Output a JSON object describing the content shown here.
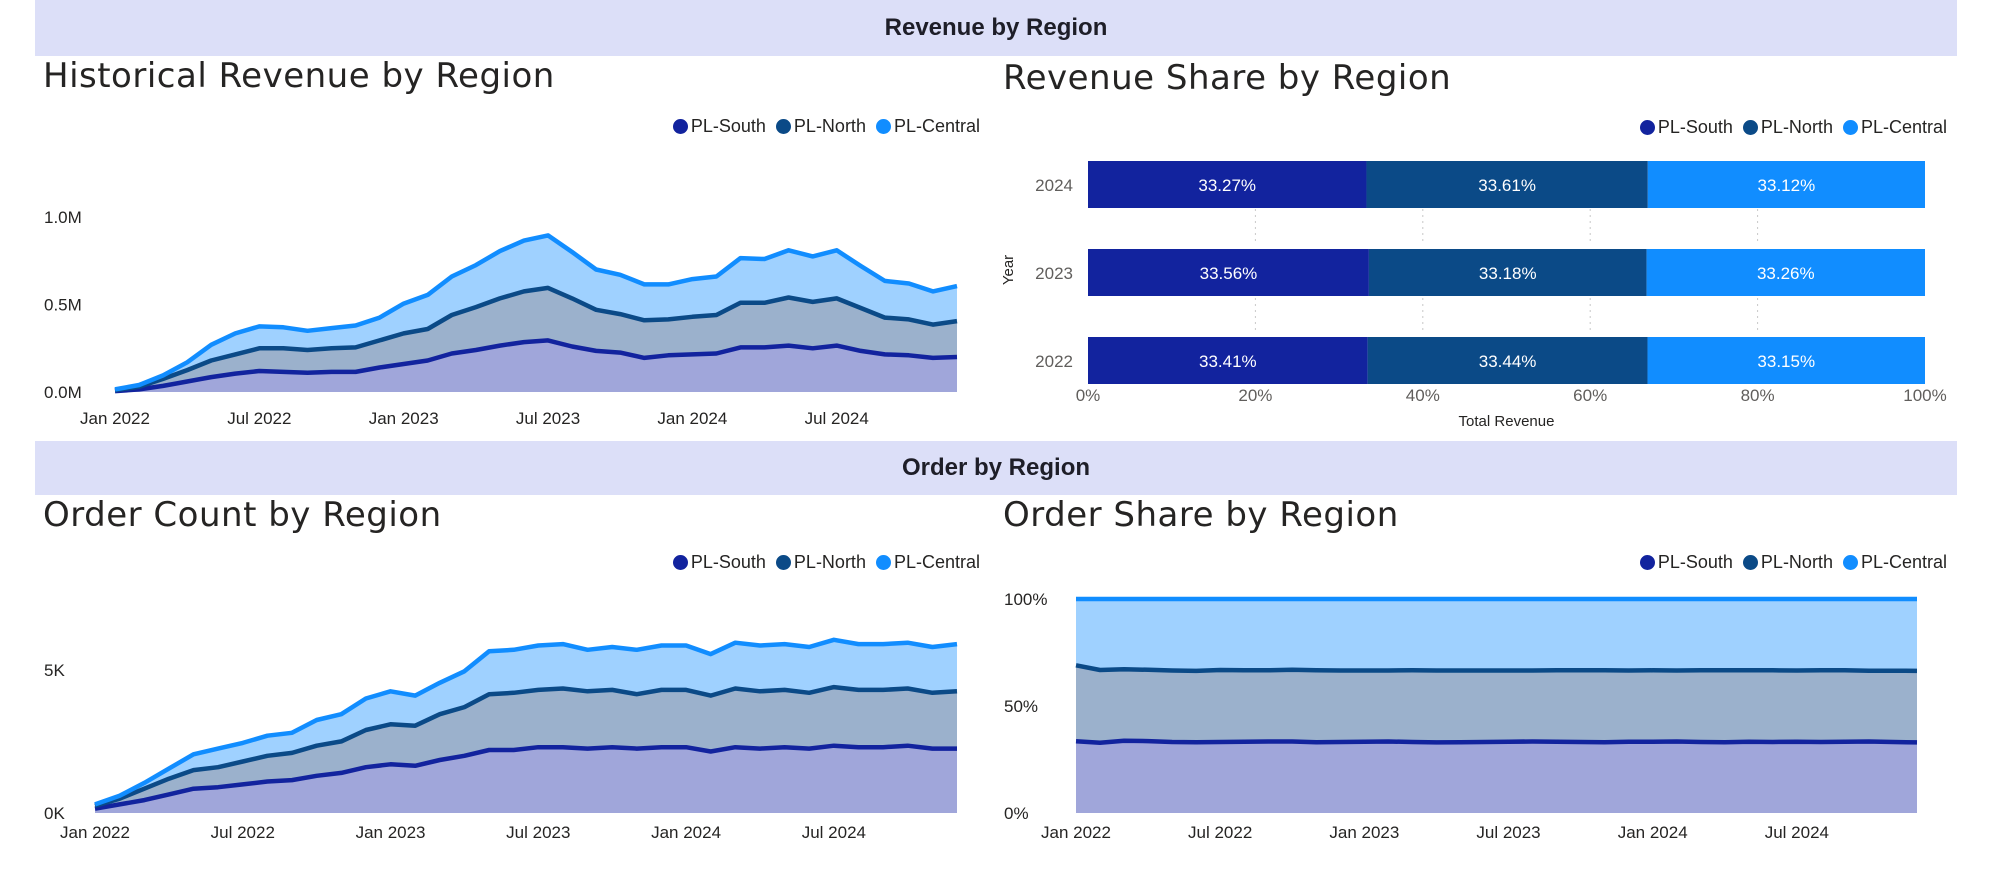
{
  "sections": {
    "revenue_title": "Revenue by Region",
    "order_title": "Order by Region"
  },
  "colors": {
    "south": "#12239e",
    "north": "#0b4a87",
    "central": "#118dff",
    "south_fill": "#a0a6da",
    "north_fill": "#9bb1cc",
    "central_fill": "#9fd1ff"
  },
  "legend": [
    "PL-South",
    "PL-North",
    "PL-Central"
  ],
  "chart_data": [
    {
      "type": "area",
      "stacked": true,
      "title": "Historical Revenue by Region",
      "x_ticks": [
        "Jan 2022",
        "Jul 2022",
        "Jan 2023",
        "Jul 2023",
        "Jan 2024",
        "Jul 2024"
      ],
      "y_ticks": [
        "0.0M",
        "0.5M",
        "1.0M"
      ],
      "ylim": [
        0,
        1000000
      ],
      "x": [
        "2022-01",
        "2022-02",
        "2022-03",
        "2022-04",
        "2022-05",
        "2022-06",
        "2022-07",
        "2022-08",
        "2022-09",
        "2022-10",
        "2022-11",
        "2022-12",
        "2023-01",
        "2023-02",
        "2023-03",
        "2023-04",
        "2023-05",
        "2023-06",
        "2023-07",
        "2023-08",
        "2023-09",
        "2023-10",
        "2023-11",
        "2023-12",
        "2024-01",
        "2024-02",
        "2024-03",
        "2024-04",
        "2024-05",
        "2024-06",
        "2024-07",
        "2024-08",
        "2024-09",
        "2024-10",
        "2024-11",
        "2024-12"
      ],
      "series": [
        {
          "name": "PL-South",
          "values": [
            5000,
            15000,
            35000,
            60000,
            85000,
            105000,
            120000,
            115000,
            110000,
            115000,
            115000,
            140000,
            160000,
            180000,
            220000,
            240000,
            265000,
            285000,
            295000,
            260000,
            235000,
            225000,
            195000,
            210000,
            215000,
            220000,
            255000,
            255000,
            265000,
            250000,
            265000,
            235000,
            215000,
            210000,
            195000,
            200000
          ]
        },
        {
          "name": "PL-North",
          "values": [
            5000,
            15000,
            40000,
            65000,
            95000,
            110000,
            130000,
            135000,
            130000,
            135000,
            140000,
            155000,
            175000,
            180000,
            220000,
            245000,
            270000,
            290000,
            300000,
            275000,
            235000,
            220000,
            215000,
            205000,
            215000,
            220000,
            255000,
            255000,
            275000,
            265000,
            270000,
            245000,
            210000,
            205000,
            190000,
            205000
          ]
        },
        {
          "name": "PL-Central",
          "values": [
            5000,
            10000,
            20000,
            45000,
            90000,
            120000,
            125000,
            120000,
            110000,
            115000,
            125000,
            130000,
            170000,
            195000,
            220000,
            240000,
            270000,
            290000,
            300000,
            265000,
            230000,
            225000,
            205000,
            200000,
            215000,
            220000,
            255000,
            250000,
            270000,
            260000,
            275000,
            240000,
            210000,
            205000,
            190000,
            200000
          ]
        }
      ]
    },
    {
      "type": "bar",
      "orientation": "horizontal",
      "stacked_percent": true,
      "title": "Revenue Share by Region",
      "categories": [
        "2024",
        "2023",
        "2022"
      ],
      "xlabel": "Total Revenue",
      "ylabel": "Year",
      "x_ticks": [
        "0%",
        "20%",
        "40%",
        "60%",
        "80%",
        "100%"
      ],
      "series": [
        {
          "name": "PL-South",
          "values": [
            33.27,
            33.56,
            33.41
          ],
          "labels": [
            "33.27%",
            "33.56%",
            "33.41%"
          ]
        },
        {
          "name": "PL-North",
          "values": [
            33.61,
            33.18,
            33.44
          ],
          "labels": [
            "33.61%",
            "33.18%",
            "33.44%"
          ]
        },
        {
          "name": "PL-Central",
          "values": [
            33.12,
            33.26,
            33.15
          ],
          "labels": [
            "33.12%",
            "33.26%",
            "33.15%"
          ]
        }
      ]
    },
    {
      "type": "area",
      "stacked": true,
      "title": "Order Count by Region",
      "x_ticks": [
        "Jan 2022",
        "Jul 2022",
        "Jan 2023",
        "Jul 2023",
        "Jan 2024",
        "Jul 2024"
      ],
      "y_ticks": [
        "0K",
        "5K"
      ],
      "ylim": [
        0,
        8000
      ],
      "x": [
        "2022-01",
        "2022-02",
        "2022-03",
        "2022-04",
        "2022-05",
        "2022-06",
        "2022-07",
        "2022-08",
        "2022-09",
        "2022-10",
        "2022-11",
        "2022-12",
        "2023-01",
        "2023-02",
        "2023-03",
        "2023-04",
        "2023-05",
        "2023-06",
        "2023-07",
        "2023-08",
        "2023-09",
        "2023-10",
        "2023-11",
        "2023-12",
        "2024-01",
        "2024-02",
        "2024-03",
        "2024-04",
        "2024-05",
        "2024-06",
        "2024-07",
        "2024-08",
        "2024-09",
        "2024-10",
        "2024-11",
        "2024-12"
      ],
      "series": [
        {
          "name": "PL-South",
          "values": [
            150,
            300,
            450,
            650,
            850,
            900,
            1000,
            1100,
            1150,
            1300,
            1400,
            1600,
            1700,
            1650,
            1850,
            2000,
            2200,
            2200,
            2300,
            2300,
            2250,
            2300,
            2250,
            2300,
            2300,
            2150,
            2300,
            2250,
            2300,
            2250,
            2350,
            2300,
            2300,
            2350,
            2250,
            2250
          ]
        },
        {
          "name": "PL-North",
          "values": [
            100,
            200,
            400,
            550,
            650,
            700,
            800,
            900,
            950,
            1050,
            1100,
            1300,
            1400,
            1400,
            1600,
            1700,
            1950,
            2000,
            2000,
            2050,
            2000,
            2000,
            1900,
            2000,
            2000,
            1950,
            2050,
            2000,
            2000,
            1950,
            2050,
            2000,
            2000,
            2000,
            1950,
            2000
          ]
        },
        {
          "name": "PL-Central",
          "values": [
            50,
            100,
            200,
            350,
            550,
            650,
            650,
            700,
            700,
            900,
            950,
            1100,
            1150,
            1050,
            1100,
            1250,
            1500,
            1500,
            1550,
            1550,
            1450,
            1500,
            1550,
            1550,
            1550,
            1450,
            1600,
            1600,
            1600,
            1600,
            1650,
            1600,
            1600,
            1600,
            1600,
            1650
          ]
        }
      ]
    },
    {
      "type": "area",
      "stacked_percent": true,
      "title": "Order Share by Region",
      "x_ticks": [
        "Jan 2022",
        "Jul 2022",
        "Jan 2023",
        "Jul 2023",
        "Jan 2024",
        "Jul 2024"
      ],
      "y_ticks": [
        "0%",
        "50%",
        "100%"
      ],
      "ylim": [
        0,
        100
      ],
      "x": [
        "2022-01",
        "2022-02",
        "2022-03",
        "2022-04",
        "2022-05",
        "2022-06",
        "2022-07",
        "2022-08",
        "2022-09",
        "2022-10",
        "2022-11",
        "2022-12",
        "2023-01",
        "2023-02",
        "2023-03",
        "2023-04",
        "2023-05",
        "2023-06",
        "2023-07",
        "2023-08",
        "2023-09",
        "2023-10",
        "2023-11",
        "2023-12",
        "2024-01",
        "2024-02",
        "2024-03",
        "2024-04",
        "2024-05",
        "2024-06",
        "2024-07",
        "2024-08",
        "2024-09",
        "2024-10",
        "2024-11",
        "2024-12"
      ],
      "series": [
        {
          "name": "PL-South",
          "values": [
            33.5,
            32.8,
            33.8,
            33.6,
            33.2,
            33.1,
            33.2,
            33.3,
            33.4,
            33.4,
            33.1,
            33.2,
            33.3,
            33.4,
            33.2,
            33.0,
            33.1,
            33.2,
            33.3,
            33.4,
            33.3,
            33.2,
            33.1,
            33.3,
            33.3,
            33.4,
            33.2,
            33.1,
            33.3,
            33.2,
            33.3,
            33.2,
            33.3,
            33.4,
            33.2,
            33.0
          ]
        },
        {
          "name": "PL-North",
          "values": [
            35.5,
            34.0,
            33.4,
            33.3,
            33.4,
            33.3,
            33.6,
            33.4,
            33.3,
            33.5,
            33.6,
            33.4,
            33.3,
            33.2,
            33.5,
            33.6,
            33.5,
            33.4,
            33.3,
            33.2,
            33.4,
            33.5,
            33.6,
            33.3,
            33.4,
            33.2,
            33.5,
            33.6,
            33.4,
            33.5,
            33.3,
            33.5,
            33.4,
            33.1,
            33.3,
            33.4
          ]
        },
        {
          "name": "PL-Central",
          "values": [
            31.0,
            33.2,
            32.8,
            33.1,
            33.4,
            33.6,
            33.2,
            33.3,
            33.3,
            33.1,
            33.3,
            33.4,
            33.4,
            33.4,
            33.3,
            33.4,
            33.4,
            33.4,
            33.4,
            33.4,
            33.3,
            33.3,
            33.3,
            33.4,
            33.3,
            33.4,
            33.3,
            33.3,
            33.3,
            33.3,
            33.4,
            33.3,
            33.3,
            33.5,
            33.5,
            33.6
          ]
        }
      ]
    }
  ]
}
